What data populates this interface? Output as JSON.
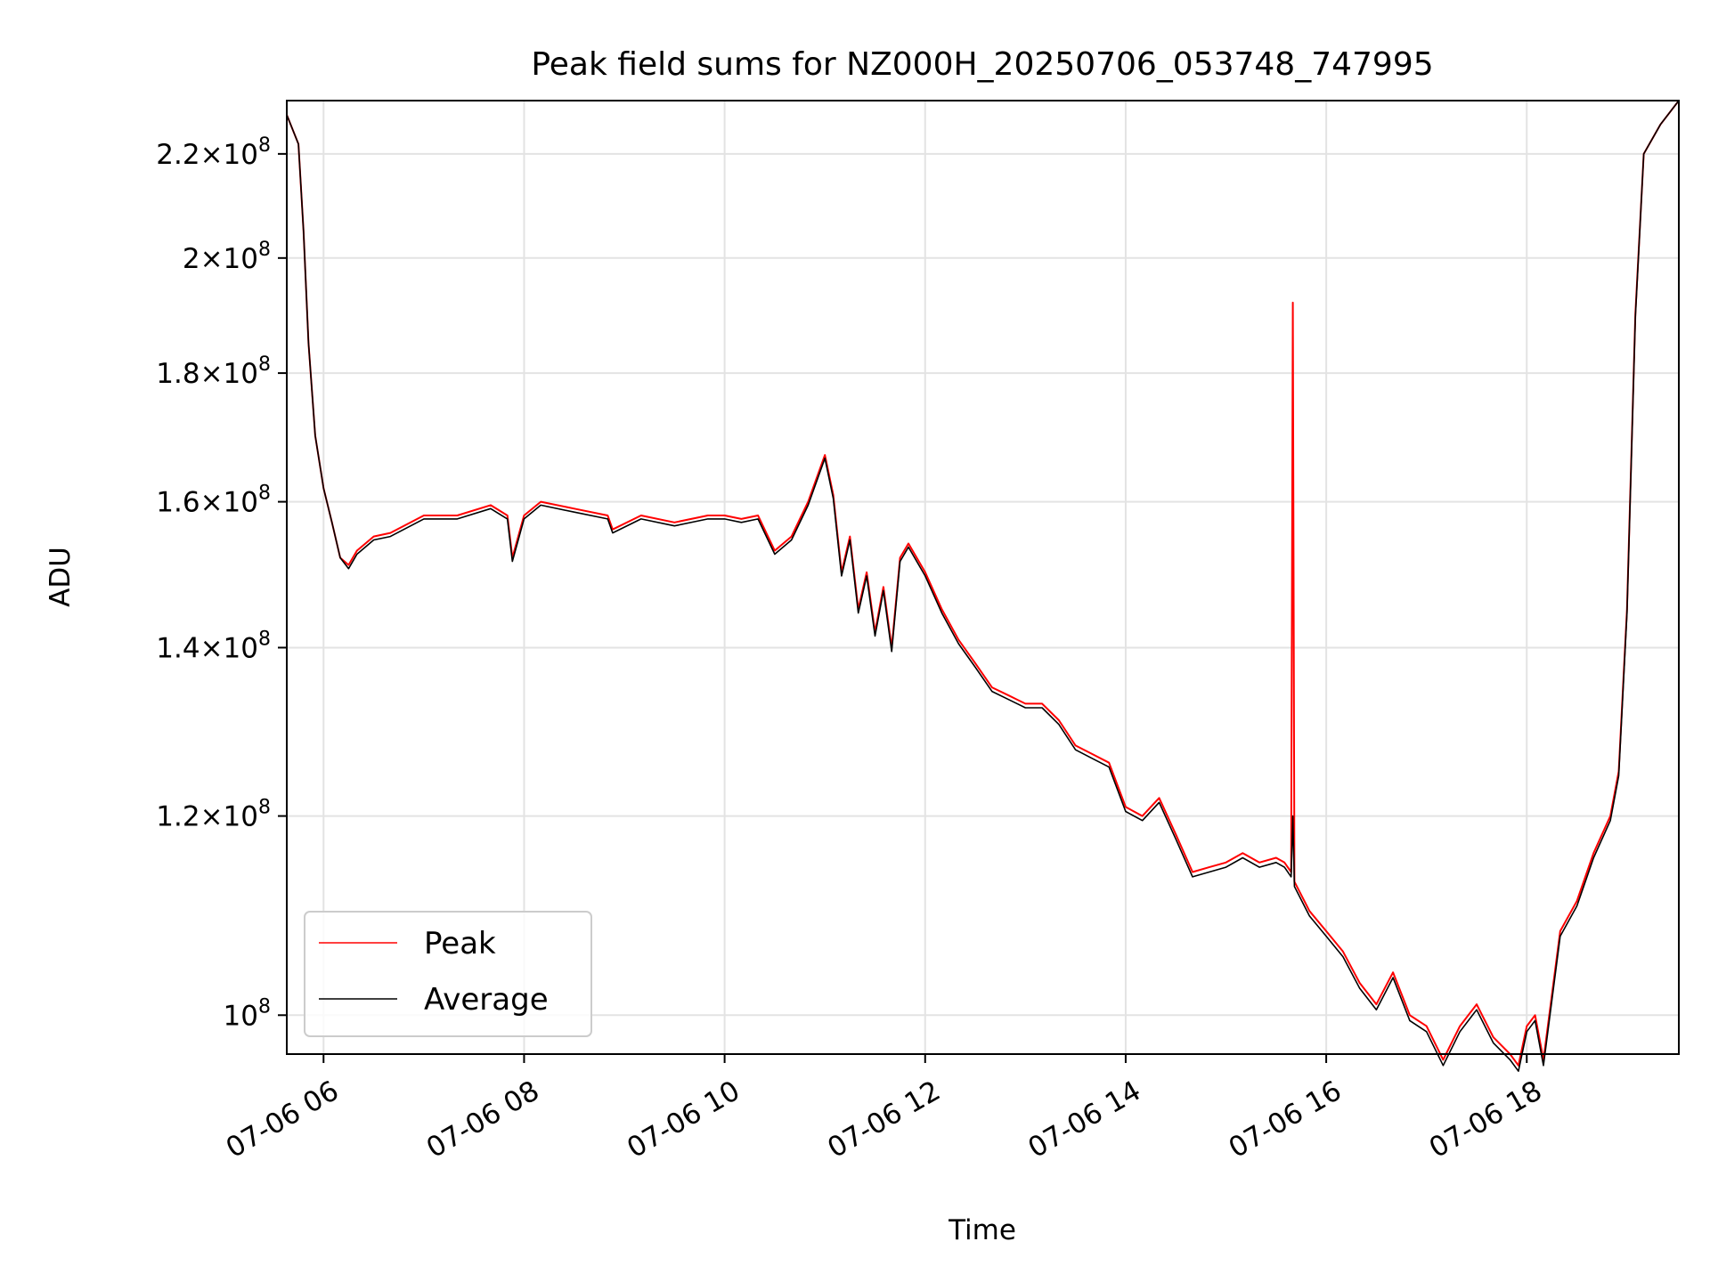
{
  "chart_data": {
    "type": "line",
    "title": "Peak field sums for NZ000H_20250706_053748_747995",
    "xlabel": "Time",
    "ylabel": "ADU",
    "y_scale": "log",
    "xlim": [
      "2025-07-06 05:38",
      "2025-07-06 19:31"
    ],
    "ylim": [
      96500000,
      231000000
    ],
    "grid": true,
    "legend_position": "lower-left",
    "x_tick_labels": [
      "07-06 06",
      "07-06 08",
      "07-06 10",
      "07-06 12",
      "07-06 14",
      "07-06 16",
      "07-06 18"
    ],
    "x_ticks": [
      "2025-07-06 06:00",
      "2025-07-06 08:00",
      "2025-07-06 10:00",
      "2025-07-06 12:00",
      "2025-07-06 14:00",
      "2025-07-06 16:00",
      "2025-07-06 18:00"
    ],
    "y_ticks": [
      {
        "value": 100000000,
        "mantissa": "",
        "exponent": "8"
      },
      {
        "value": 120000000,
        "mantissa": "1.2",
        "exponent": "8"
      },
      {
        "value": 140000000,
        "mantissa": "1.4",
        "exponent": "8"
      },
      {
        "value": 160000000,
        "mantissa": "1.6",
        "exponent": "8"
      },
      {
        "value": 180000000,
        "mantissa": "1.8",
        "exponent": "8"
      },
      {
        "value": 200000000,
        "mantissa": "2",
        "exponent": "8"
      },
      {
        "value": 220000000,
        "mantissa": "2.2",
        "exponent": "8"
      }
    ],
    "y_tick_base": "10",
    "y_tick_times": "×",
    "x": [
      "2025-07-06 05:38",
      "2025-07-06 05:45",
      "2025-07-06 05:48",
      "2025-07-06 05:51",
      "2025-07-06 05:55",
      "2025-07-06 06:00",
      "2025-07-06 06:05",
      "2025-07-06 06:10",
      "2025-07-06 06:15",
      "2025-07-06 06:20",
      "2025-07-06 06:30",
      "2025-07-06 06:40",
      "2025-07-06 07:00",
      "2025-07-06 07:20",
      "2025-07-06 07:40",
      "2025-07-06 07:50",
      "2025-07-06 07:53",
      "2025-07-06 08:00",
      "2025-07-06 08:10",
      "2025-07-06 08:30",
      "2025-07-06 08:50",
      "2025-07-06 08:53",
      "2025-07-06 09:10",
      "2025-07-06 09:30",
      "2025-07-06 09:50",
      "2025-07-06 10:00",
      "2025-07-06 10:10",
      "2025-07-06 10:20",
      "2025-07-06 10:30",
      "2025-07-06 10:40",
      "2025-07-06 10:50",
      "2025-07-06 11:00",
      "2025-07-06 11:05",
      "2025-07-06 11:10",
      "2025-07-06 11:15",
      "2025-07-06 11:20",
      "2025-07-06 11:25",
      "2025-07-06 11:30",
      "2025-07-06 11:35",
      "2025-07-06 11:40",
      "2025-07-06 11:45",
      "2025-07-06 11:50",
      "2025-07-06 12:00",
      "2025-07-06 12:10",
      "2025-07-06 12:20",
      "2025-07-06 12:30",
      "2025-07-06 12:40",
      "2025-07-06 12:50",
      "2025-07-06 13:00",
      "2025-07-06 13:10",
      "2025-07-06 13:20",
      "2025-07-06 13:30",
      "2025-07-06 13:40",
      "2025-07-06 13:50",
      "2025-07-06 14:00",
      "2025-07-06 14:10",
      "2025-07-06 14:20",
      "2025-07-06 14:30",
      "2025-07-06 14:40",
      "2025-07-06 14:50",
      "2025-07-06 15:00",
      "2025-07-06 15:10",
      "2025-07-06 15:20",
      "2025-07-06 15:30",
      "2025-07-06 15:35",
      "2025-07-06 15:39",
      "2025-07-06 15:40",
      "2025-07-06 15:41",
      "2025-07-06 15:50",
      "2025-07-06 16:00",
      "2025-07-06 16:10",
      "2025-07-06 16:20",
      "2025-07-06 16:30",
      "2025-07-06 16:40",
      "2025-07-06 16:50",
      "2025-07-06 17:00",
      "2025-07-06 17:10",
      "2025-07-06 17:20",
      "2025-07-06 17:30",
      "2025-07-06 17:40",
      "2025-07-06 17:50",
      "2025-07-06 17:55",
      "2025-07-06 18:00",
      "2025-07-06 18:05",
      "2025-07-06 18:10",
      "2025-07-06 18:20",
      "2025-07-06 18:30",
      "2025-07-06 18:40",
      "2025-07-06 18:50",
      "2025-07-06 18:55",
      "2025-07-06 19:00",
      "2025-07-06 19:05",
      "2025-07-06 19:10",
      "2025-07-06 19:20",
      "2025-07-06 19:31"
    ],
    "series": [
      {
        "name": "Peak",
        "color": "#ff0000",
        "values": [
          228000000,
          222000000,
          205000000,
          185000000,
          170000000,
          162000000,
          157000000,
          152000000,
          151000000,
          153000000,
          155000000,
          155500000,
          158000000,
          158000000,
          159500000,
          158000000,
          152000000,
          158000000,
          160000000,
          159000000,
          158000000,
          156000000,
          158000000,
          157000000,
          158000000,
          158000000,
          157500000,
          158000000,
          153000000,
          155000000,
          160000000,
          167000000,
          161000000,
          150000000,
          155000000,
          145000000,
          150000000,
          142000000,
          148000000,
          140000000,
          152000000,
          154000000,
          150000000,
          145000000,
          141000000,
          138000000,
          135000000,
          134000000,
          133000000,
          133000000,
          131000000,
          128000000,
          127000000,
          126000000,
          121000000,
          120000000,
          122000000,
          118000000,
          114000000,
          114500000,
          115000000,
          116000000,
          115000000,
          115500000,
          115000000,
          114000000,
          192000000,
          113000000,
          110000000,
          108000000,
          106000000,
          103000000,
          101000000,
          104000000,
          100000000,
          99000000,
          96000000,
          99000000,
          101000000,
          98000000,
          96500000,
          95500000,
          99000000,
          100000000,
          96000000,
          108000000,
          111000000,
          116000000,
          120000000,
          125000000,
          145000000,
          190000000,
          220000000,
          226000000,
          231000000
        ]
      },
      {
        "name": "Average",
        "color": "#000000",
        "values": [
          228000000,
          222000000,
          205000000,
          185000000,
          170000000,
          162000000,
          157000000,
          152000000,
          150500000,
          152500000,
          154500000,
          155000000,
          157500000,
          157500000,
          159000000,
          157500000,
          151500000,
          157500000,
          159500000,
          158500000,
          157500000,
          155500000,
          157500000,
          156500000,
          157500000,
          157500000,
          157000000,
          157500000,
          152500000,
          154500000,
          159500000,
          166500000,
          160500000,
          149500000,
          154500000,
          144500000,
          149500000,
          141500000,
          147500000,
          139500000,
          151500000,
          153500000,
          149500000,
          144500000,
          140500000,
          137500000,
          134500000,
          133500000,
          132500000,
          132500000,
          130500000,
          127500000,
          126500000,
          125500000,
          120500000,
          119500000,
          121500000,
          117500000,
          113500000,
          114000000,
          114500000,
          115500000,
          114500000,
          115000000,
          114500000,
          113500000,
          120000000,
          112500000,
          109500000,
          107500000,
          105500000,
          102500000,
          100500000,
          103500000,
          99500000,
          98500000,
          95500000,
          98500000,
          100500000,
          97500000,
          96000000,
          95000000,
          98500000,
          99500000,
          95500000,
          107500000,
          110500000,
          115500000,
          119500000,
          124500000,
          144500000,
          189500000,
          220000000,
          226000000,
          231000000
        ]
      }
    ]
  }
}
